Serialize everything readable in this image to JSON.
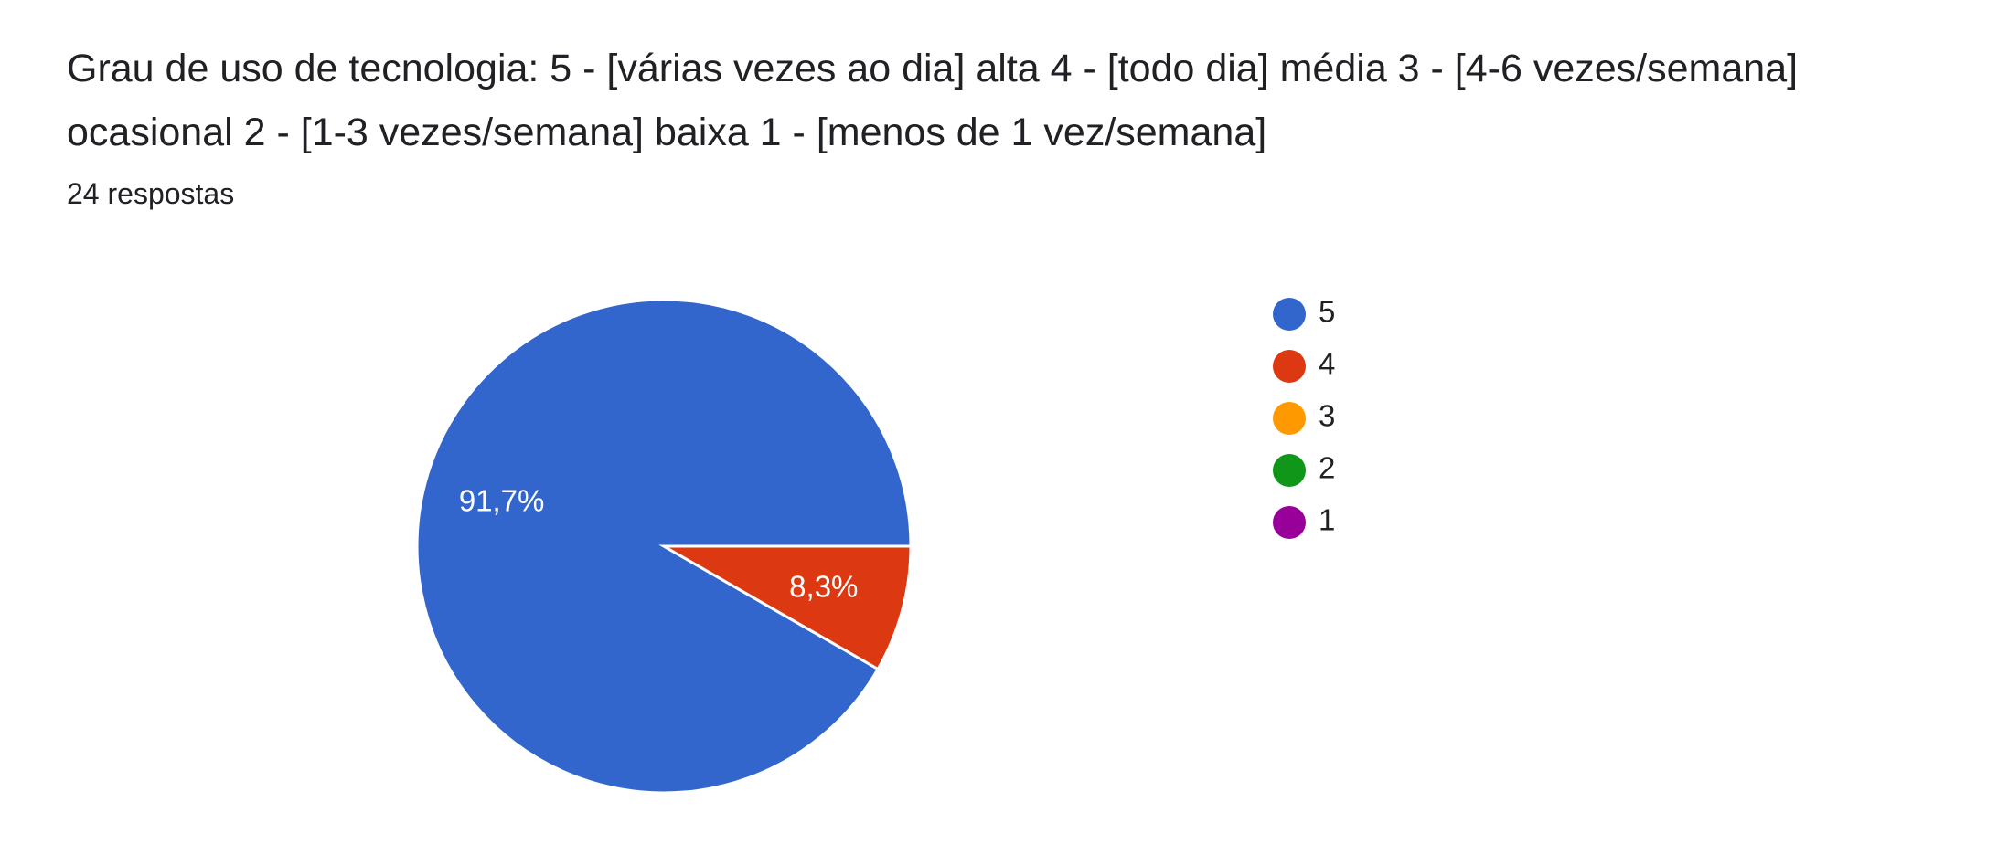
{
  "question": {
    "title": "Grau de uso de tecnologia: 5 - [várias vezes ao dia] alta 4 - [todo dia] média 3 - [4-6 vezes/semana] ocasional 2 - [1-3 vezes/semana] baixa 1 - [menos de 1 vez/semana]",
    "responses": "24 respostas"
  },
  "chart_data": {
    "type": "pie",
    "title": "Grau de uso de tecnologia: 5 - [várias vezes ao dia] alta 4 - [todo dia] média 3 - [4-6 vezes/semana] ocasional 2 - [1-3 vezes/semana] baixa 1 - [menos de 1 vez/semana]",
    "categories": [
      "5",
      "4",
      "3",
      "2",
      "1"
    ],
    "values": [
      91.7,
      8.3,
      0,
      0,
      0
    ],
    "labels": [
      "91,7%",
      "8,3%",
      "",
      "",
      ""
    ],
    "colors": [
      "#3366cc",
      "#dc3912",
      "#ff9900",
      "#109618",
      "#990099"
    ],
    "legend_position": "right"
  }
}
